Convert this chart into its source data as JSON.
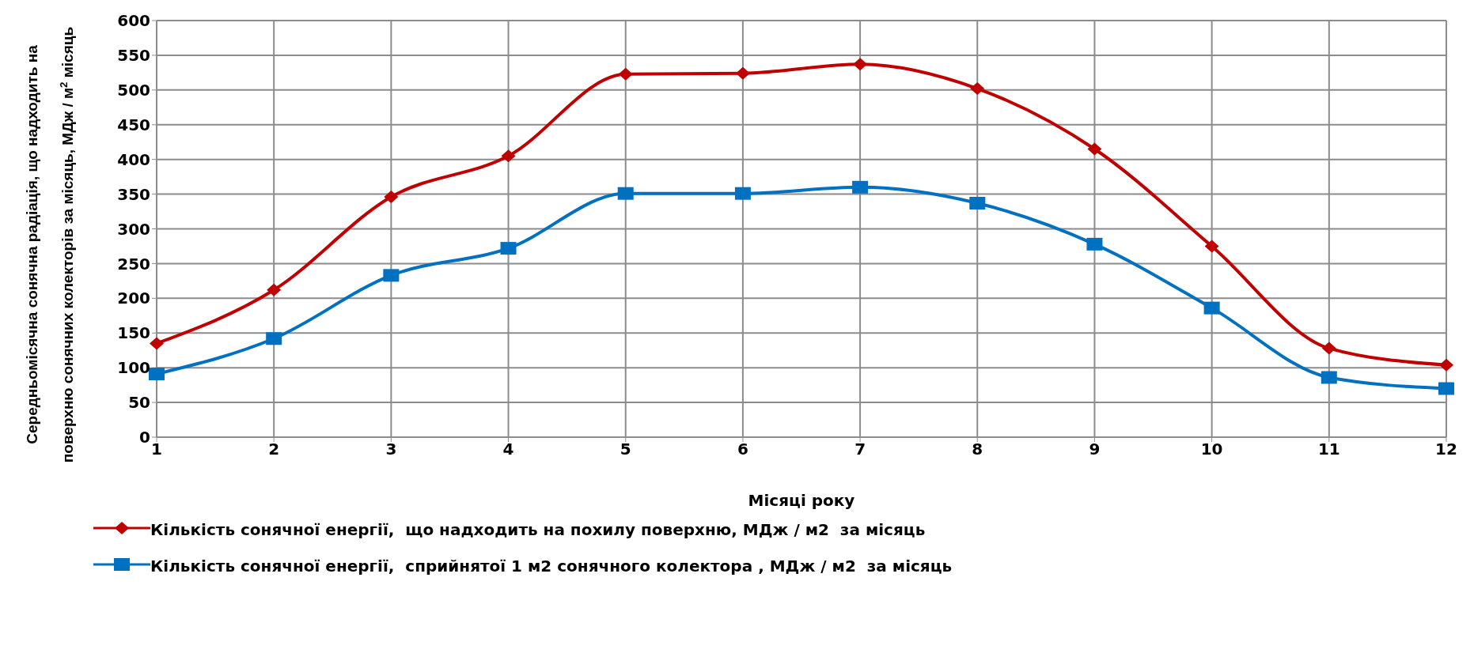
{
  "chart_data": {
    "type": "line",
    "xlabel": "Місяці року",
    "ylabel": "Середньомісячна  сонячна радіація, що надходить на\nповерхню сонячних  колекторів за місяць, МДж / м$^{2}$ місяць",
    "categories": [
      "1",
      "2",
      "3",
      "4",
      "5",
      "6",
      "7",
      "8",
      "9",
      "10",
      "11",
      "12"
    ],
    "series": [
      {
        "name": "Кількість сонячної енергії,  що надходить на похилу поверхню, МДж / м2  за місяць",
        "color": "#c00000",
        "marker": "diamond",
        "values": [
          135,
          212,
          346,
          405,
          523,
          524,
          537,
          502,
          415,
          275,
          128,
          104
        ]
      },
      {
        "name": "Кількість сонячної енергії,  сприйнятої 1 м2 сонячного колектора , МДж / м2  за місяць",
        "color": "#0070c0",
        "marker": "square",
        "values": [
          91,
          142,
          233,
          272,
          351,
          351,
          360,
          337,
          278,
          186,
          86,
          70
        ]
      }
    ],
    "ylim": [
      0,
      600
    ],
    "yticks": [
      0,
      50,
      100,
      150,
      200,
      250,
      300,
      350,
      400,
      450,
      500,
      550,
      600
    ],
    "grid": true,
    "legend": "bottom",
    "line_style": "solid"
  }
}
